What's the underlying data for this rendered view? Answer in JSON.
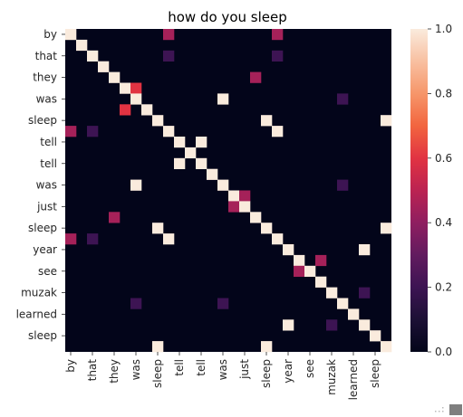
{
  "chart_data": {
    "type": "heatmap",
    "title": "how do you sleep",
    "labels": [
      "by",
      "",
      "that",
      "",
      "they",
      "",
      "was",
      "",
      "sleep",
      "",
      "tell",
      "",
      "tell",
      "",
      "was",
      "",
      "just",
      "",
      "sleep",
      "",
      "year",
      "",
      "see",
      "",
      "muzak",
      "",
      "learned",
      "",
      "sleep",
      ""
    ],
    "colorbar": {
      "min": 0.0,
      "max": 1.0,
      "ticks": [
        "0.0",
        "0.2",
        "0.4",
        "0.6",
        "0.8",
        "1.0"
      ]
    },
    "colormap": "rocket",
    "cells": [
      [
        0,
        0,
        1.0
      ],
      [
        0,
        9,
        0.45
      ],
      [
        0,
        19,
        0.45
      ],
      [
        1,
        1,
        1.0
      ],
      [
        2,
        2,
        1.0
      ],
      [
        2,
        9,
        0.2
      ],
      [
        2,
        19,
        0.2
      ],
      [
        3,
        3,
        1.0
      ],
      [
        4,
        4,
        1.0
      ],
      [
        4,
        17,
        0.45
      ],
      [
        5,
        5,
        1.0
      ],
      [
        5,
        6,
        0.6
      ],
      [
        6,
        6,
        1.0
      ],
      [
        6,
        14,
        1.0
      ],
      [
        6,
        25,
        0.2
      ],
      [
        7,
        5,
        0.6
      ],
      [
        7,
        7,
        1.0
      ],
      [
        8,
        8,
        1.0
      ],
      [
        8,
        18,
        1.0
      ],
      [
        8,
        29,
        1.0
      ],
      [
        9,
        0,
        0.45
      ],
      [
        9,
        2,
        0.2
      ],
      [
        9,
        9,
        1.0
      ],
      [
        9,
        19,
        1.0
      ],
      [
        10,
        10,
        1.0
      ],
      [
        10,
        12,
        1.0
      ],
      [
        11,
        11,
        1.0
      ],
      [
        12,
        10,
        1.0
      ],
      [
        12,
        12,
        1.0
      ],
      [
        13,
        13,
        1.0
      ],
      [
        14,
        6,
        1.0
      ],
      [
        14,
        14,
        1.0
      ],
      [
        14,
        25,
        0.2
      ],
      [
        15,
        15,
        1.0
      ],
      [
        15,
        16,
        0.45
      ],
      [
        16,
        15,
        0.45
      ],
      [
        16,
        16,
        1.0
      ],
      [
        17,
        4,
        0.45
      ],
      [
        17,
        17,
        1.0
      ],
      [
        18,
        8,
        1.0
      ],
      [
        18,
        18,
        1.0
      ],
      [
        18,
        29,
        1.0
      ],
      [
        19,
        0,
        0.45
      ],
      [
        19,
        2,
        0.2
      ],
      [
        19,
        9,
        1.0
      ],
      [
        19,
        19,
        1.0
      ],
      [
        20,
        20,
        1.0
      ],
      [
        20,
        27,
        1.0
      ],
      [
        21,
        21,
        1.0
      ],
      [
        21,
        23,
        0.45
      ],
      [
        22,
        21,
        0.45
      ],
      [
        22,
        22,
        1.0
      ],
      [
        23,
        23,
        1.0
      ],
      [
        24,
        24,
        1.0
      ],
      [
        24,
        27,
        0.2
      ],
      [
        25,
        6,
        0.2
      ],
      [
        25,
        14,
        0.2
      ],
      [
        25,
        25,
        1.0
      ],
      [
        26,
        26,
        1.0
      ],
      [
        27,
        20,
        1.0
      ],
      [
        27,
        24,
        0.2
      ],
      [
        27,
        27,
        1.0
      ],
      [
        28,
        28,
        1.0
      ],
      [
        29,
        8,
        1.0
      ],
      [
        29,
        18,
        1.0
      ],
      [
        29,
        29,
        1.0
      ]
    ]
  }
}
